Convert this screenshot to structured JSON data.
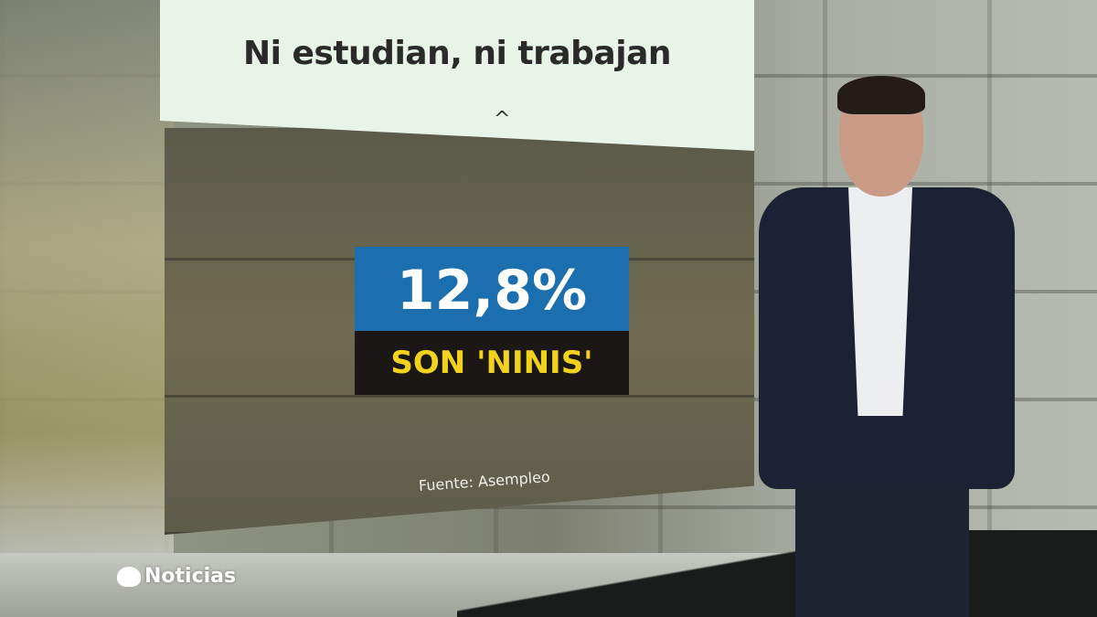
{
  "graphic": {
    "title": "Ni estudian, ni trabajan",
    "caret": "^",
    "stat_value": "12,8%",
    "stat_label": "SON 'NINIS'",
    "source": "Fuente: Asempleo",
    "colors": {
      "stat_box": "#1b6fae",
      "label_box": "#1a1715",
      "label_text": "#f2d21c",
      "title_card": "#e9f4e8"
    }
  },
  "channel": {
    "logo_text": "Noticias",
    "logo_icon": "antena3-logo"
  }
}
